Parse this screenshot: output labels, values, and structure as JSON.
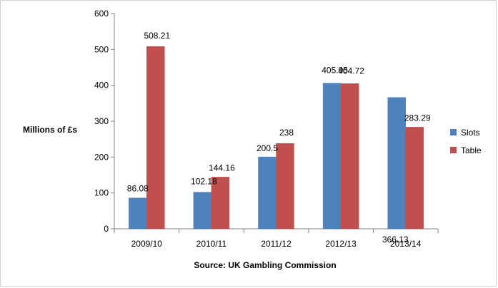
{
  "chart_data": {
    "type": "bar",
    "categories": [
      "2009/10",
      "2010/11",
      "2011/12",
      "2012/13",
      "2013/14"
    ],
    "series": [
      {
        "name": "Slots",
        "values": [
          86.08,
          102.18,
          200.5,
          405.95,
          366.13
        ],
        "labels": [
          "86.08",
          "102.18",
          "200.5",
          "405.95",
          "366.13"
        ],
        "color": "#4f81bd"
      },
      {
        "name": "Table",
        "values": [
          508.21,
          144.16,
          238,
          404.72,
          283.29
        ],
        "labels": [
          "508.21",
          "144.16",
          "238",
          "404.72",
          "283.29"
        ],
        "color": "#c0504d"
      }
    ],
    "ylabel": "Millions of £s",
    "xlabel": "Source: UK Gambling Commission",
    "ylim": [
      0,
      600
    ],
    "yticks": [
      "0",
      "100",
      "200",
      "300",
      "400",
      "500",
      "600"
    ],
    "grid": false,
    "legend": "right"
  }
}
